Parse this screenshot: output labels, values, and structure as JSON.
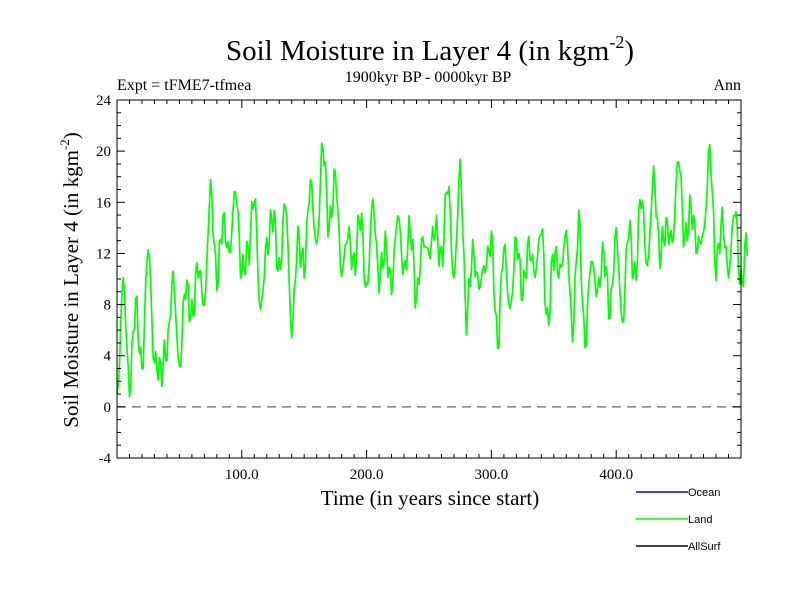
{
  "chart_data": {
    "type": "line",
    "title": "Soil Moisture in Layer 4 (in kgm",
    "title_sup": "-2",
    "title_close": ")",
    "subtitle": "1900kyr BP - 0000kyr BP",
    "left_label": "Expt = tFME7-tfmea",
    "right_label": "Ann",
    "xlabel": "Time (in years since start)",
    "ylabel": "Soil Moisture in Layer 4 (in kgm",
    "ylabel_sup": "-2",
    "ylabel_close": ")",
    "xlim": [
      0,
      500
    ],
    "ylim": [
      -4,
      24
    ],
    "x_ticks": [
      100,
      200,
      300,
      400
    ],
    "x_tick_labels": [
      "100.0",
      "200.0",
      "300.0",
      "400.0"
    ],
    "y_ticks": [
      -4,
      0,
      4,
      8,
      12,
      16,
      20,
      24
    ],
    "y_tick_labels": [
      "-4",
      "0",
      "4",
      "8",
      "12",
      "16",
      "20",
      "24"
    ],
    "zero_line": 0,
    "legend": [
      {
        "name": "Ocean",
        "color": "#0000ff"
      },
      {
        "name": "Land",
        "color": "#00ff00"
      },
      {
        "name": "AllSurf",
        "color": "#000000"
      }
    ],
    "series": [
      {
        "name": "Land",
        "color": "#00ff00",
        "x_step": 5,
        "anchors": [
          0.5,
          9.8,
          1.5,
          8.0,
          3.0,
          12.5,
          3.5,
          2.8,
          4.5,
          10.0,
          3.0,
          9.5,
          7.0,
          11.0,
          8.0,
          17.0,
          10.0,
          14.5,
          12.0,
          17.0,
          10.5,
          12.0,
          16.5,
          7.5,
          12.5,
          15.0,
          10.5,
          16.0,
          6.0,
          13.0,
          11.0,
          17.5,
          12.5,
          20.5,
          14.0,
          18.0,
          10.5,
          13.5,
          11.0,
          15.0,
          9.0,
          16.0,
          10.0,
          12.5,
          9.5,
          15.0,
          10.5,
          14.0,
          8.5,
          13.0,
          12.0,
          14.0,
          11.5,
          17.5,
          10.0,
          18.5,
          7.0,
          12.0,
          9.5,
          11.0,
          13.0,
          5.0,
          12.5,
          7.5,
          13.0,
          9.0,
          12.5,
          10.5,
          14.0,
          6.5,
          12.0,
          10.5,
          13.5,
          6.0,
          14.5,
          5.0,
          11.5,
          9.0,
          12.0,
          7.5,
          13.5,
          6.5,
          14.0,
          10.0,
          16.5,
          11.0,
          18.0,
          12.0,
          14.0,
          13.0,
          19.5,
          13.0,
          15.5,
          12.5,
          13.5,
          20.0,
          11.0,
          14.5,
          10.5,
          15.5,
          9.5,
          13.0
        ]
      },
      {
        "name": "Ocean",
        "color": "#0000ff",
        "values": []
      },
      {
        "name": "AllSurf",
        "color": "#000000",
        "values": []
      }
    ]
  }
}
